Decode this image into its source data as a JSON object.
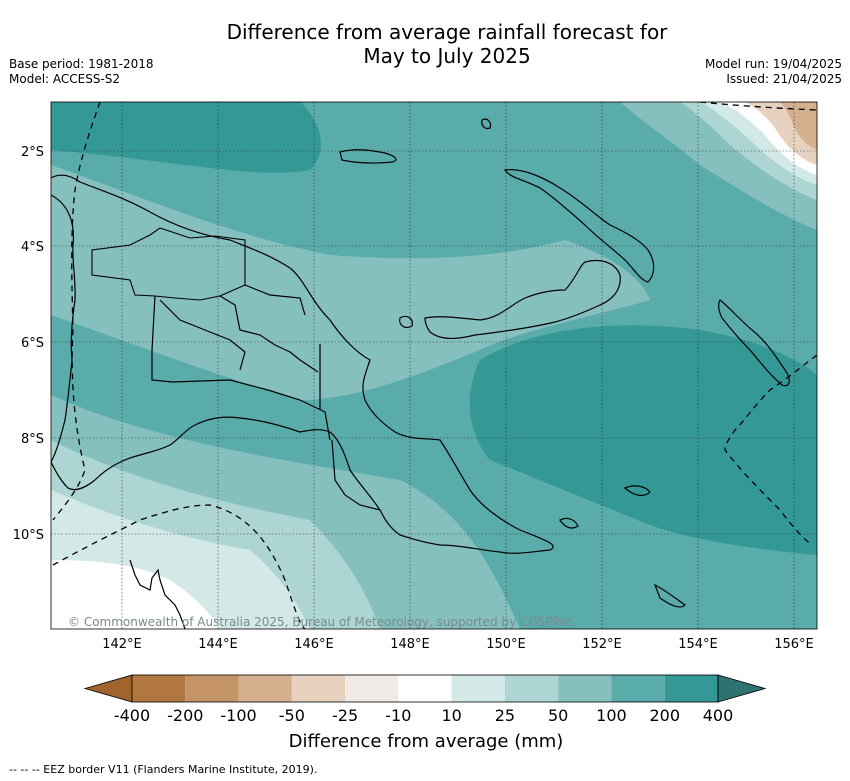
{
  "title_line1": "Difference from average rainfall forecast for",
  "title_line2": "May to July 2025",
  "meta_left": {
    "base_period": "Base period: 1981-2018",
    "model": "Model: ACCESS-S2"
  },
  "meta_right": {
    "model_run": "Model run: 19/04/2025",
    "issued": "Issued: 21/04/2025"
  },
  "axes": {
    "lon_labels": [
      "142°E",
      "144°E",
      "146°E",
      "148°E",
      "150°E",
      "152°E",
      "154°E",
      "156°E"
    ],
    "lat_labels": [
      "2°S",
      "4°S",
      "6°S",
      "8°S",
      "10°S"
    ]
  },
  "copyright": "© Commonwealth of Australia 2025, Bureau of Meteorology, supported by COSPPac",
  "colorbar": {
    "labels": [
      "-400",
      "-200",
      "-100",
      "-50",
      "-25",
      "-10",
      "10",
      "25",
      "50",
      "100",
      "200",
      "400"
    ],
    "colors": [
      "#a0652d",
      "#b07840",
      "#c49467",
      "#d5b08f",
      "#e7d2bf",
      "#f0ebe7",
      "#ffffff",
      "#d3e9e7",
      "#acd5d3",
      "#85c0bf",
      "#5aacab",
      "#339896",
      "#2f7371"
    ],
    "title": "Difference from average (mm)"
  },
  "footnote": "-- -- -- EEZ border V11 (Flanders Marine Institute, 2019)."
}
